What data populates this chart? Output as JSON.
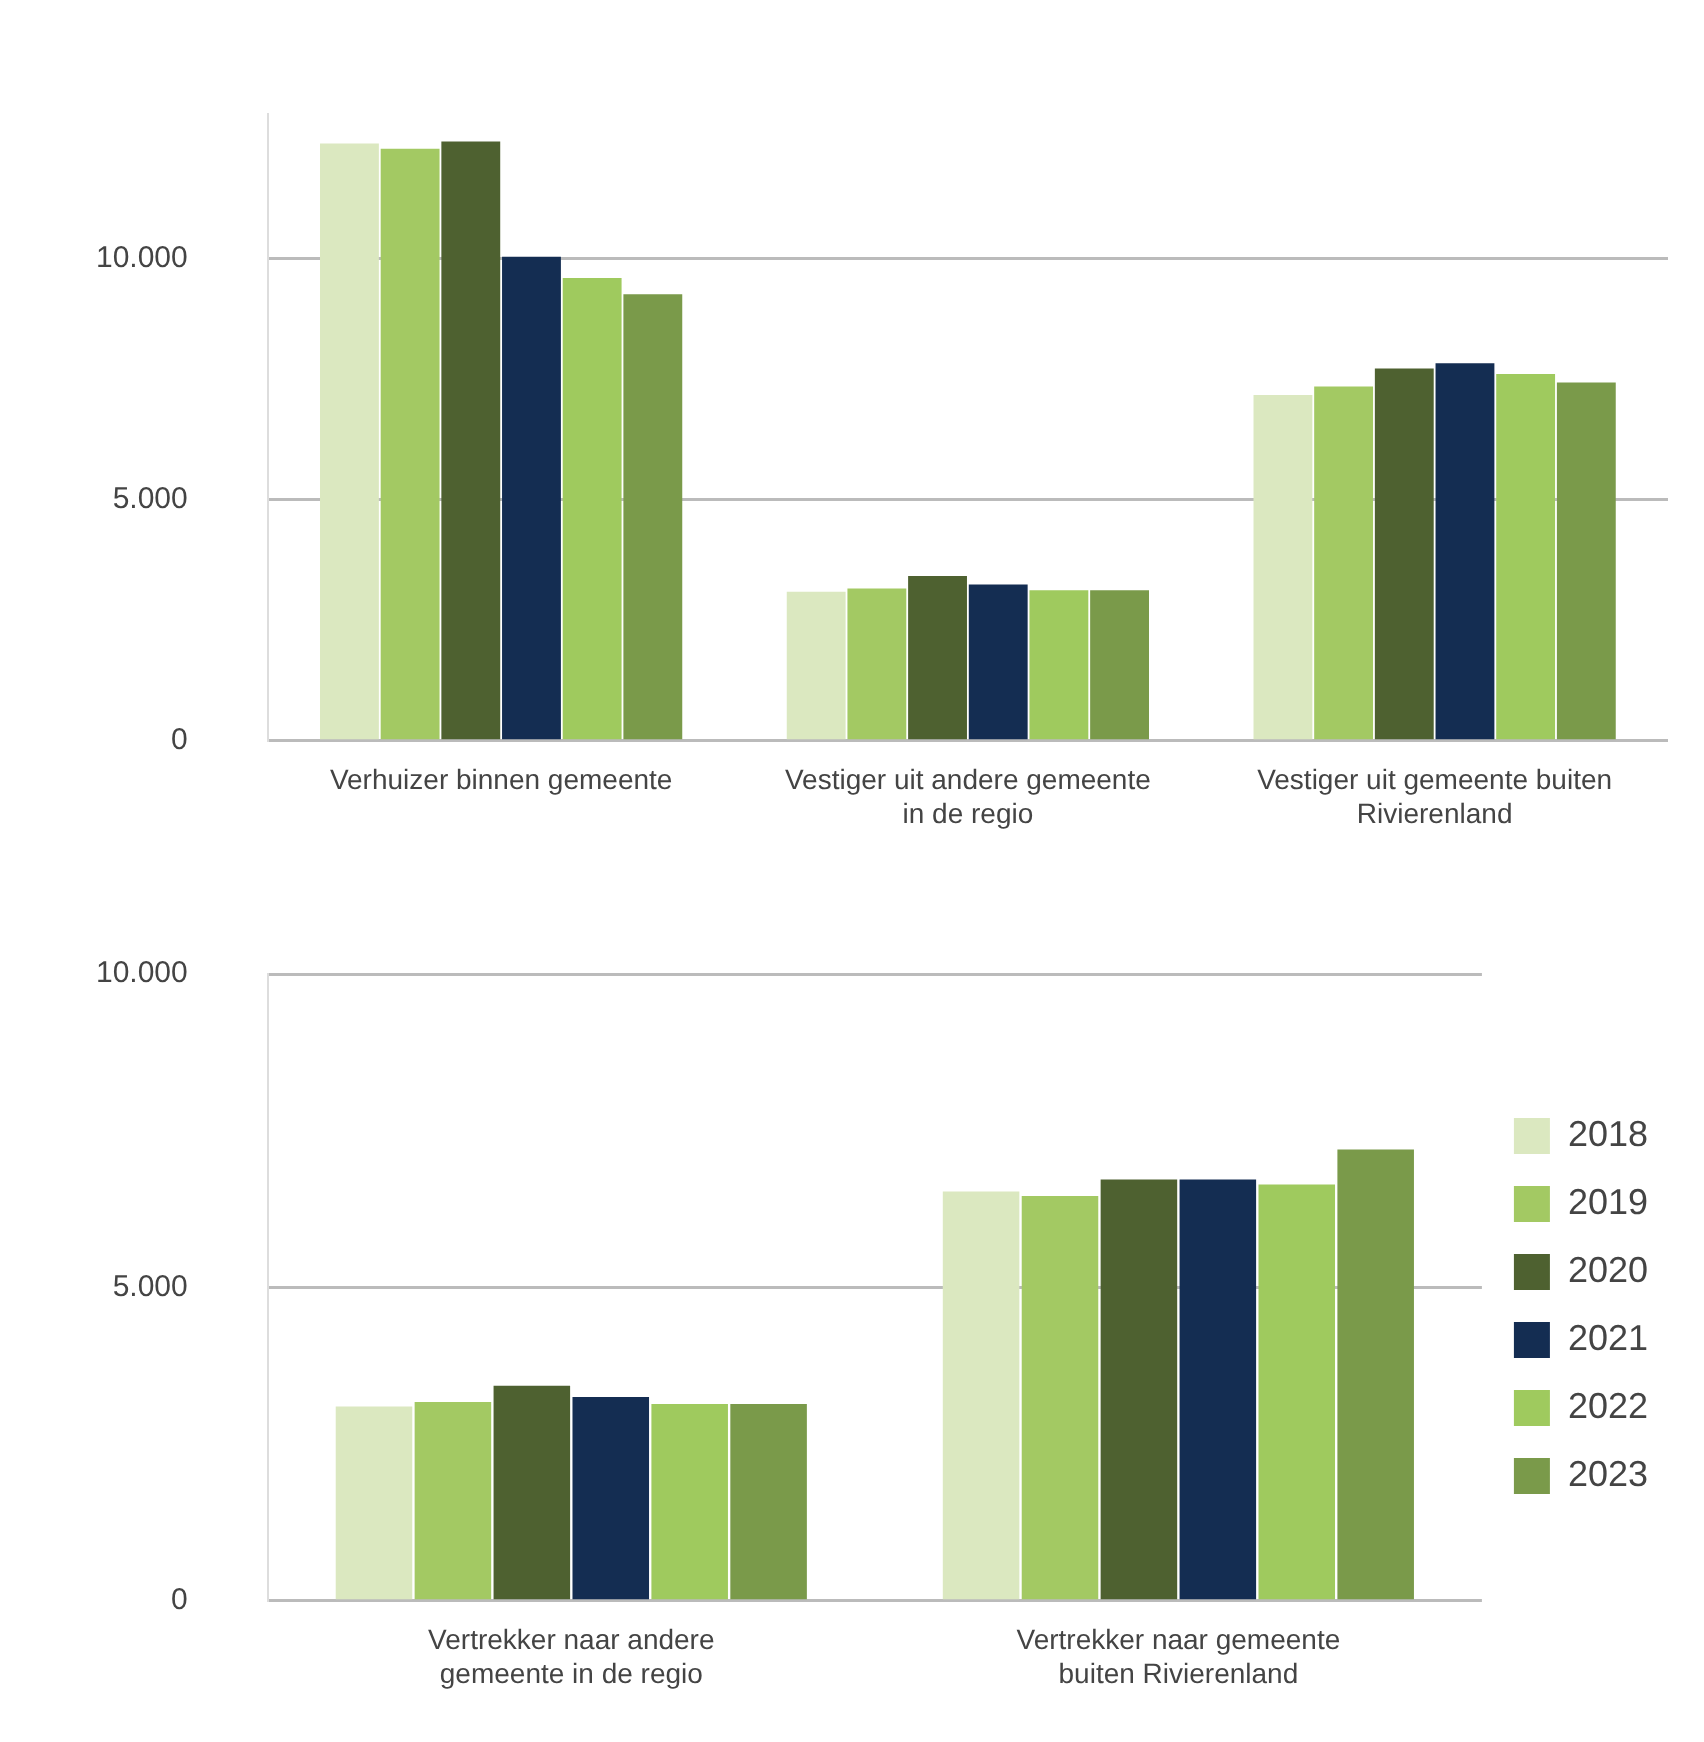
{
  "chart_data": [
    {
      "type": "bar",
      "categories": [
        "Verhuizer binnen gemeente",
        "Vestiger uit andere gemeente in de regio",
        "Vestiger uit gemeente buiten Rivierenland"
      ],
      "series": [
        {
          "color": "#dbe8c0",
          "values": [
            12390,
            3090,
            7170
          ]
        },
        {
          "color": "#a3c963",
          "values": [
            12280,
            3160,
            7350
          ]
        },
        {
          "color": "#4e6130",
          "values": [
            12430,
            3420,
            7720
          ]
        },
        {
          "color": "#142d52",
          "values": [
            10040,
            3240,
            7830
          ]
        },
        {
          "color": "#9fca5e",
          "values": [
            9600,
            3120,
            7610
          ]
        },
        {
          "color": "#7a9a4a",
          "values": [
            9260,
            3120,
            7430
          ]
        }
      ],
      "ylim": [
        0,
        13000
      ],
      "yticks": [
        {
          "value": 0,
          "label": "0"
        },
        {
          "value": 5000,
          "label": "5.000"
        },
        {
          "value": 10000,
          "label": "10.000"
        }
      ],
      "grid": "y",
      "legend": false
    },
    {
      "type": "bar",
      "categories": [
        "Vertrekker naar andere gemeente in de regio",
        "Vertrekker naar gemeente buiten Rivierenland"
      ],
      "series": [
        {
          "name": "2018",
          "color": "#dbe8c0",
          "values": [
            3100,
            6530
          ]
        },
        {
          "name": "2019",
          "color": "#a3c963",
          "values": [
            3170,
            6460
          ]
        },
        {
          "name": "2020",
          "color": "#4e6130",
          "values": [
            3430,
            6720
          ]
        },
        {
          "name": "2021",
          "color": "#142d52",
          "values": [
            3250,
            6720
          ]
        },
        {
          "name": "2022",
          "color": "#9fca5e",
          "values": [
            3140,
            6640
          ]
        },
        {
          "name": "2023",
          "color": "#7a9a4a",
          "values": [
            3140,
            7200
          ]
        }
      ],
      "ylim": [
        0,
        10000
      ],
      "yticks": [
        {
          "value": 0,
          "label": "0"
        },
        {
          "value": 5000,
          "label": "5.000"
        },
        {
          "value": 10000,
          "label": "10.000"
        }
      ],
      "grid": "y",
      "legend": "right"
    }
  ]
}
